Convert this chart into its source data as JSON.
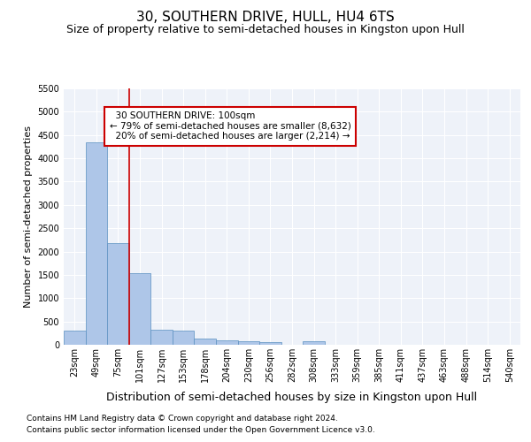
{
  "title": "30, SOUTHERN DRIVE, HULL, HU4 6TS",
  "subtitle": "Size of property relative to semi-detached houses in Kingston upon Hull",
  "xlabel": "Distribution of semi-detached houses by size in Kingston upon Hull",
  "ylabel": "Number of semi-detached properties",
  "footnote1": "Contains HM Land Registry data © Crown copyright and database right 2024.",
  "footnote2": "Contains public sector information licensed under the Open Government Licence v3.0.",
  "bar_labels": [
    "23sqm",
    "49sqm",
    "75sqm",
    "101sqm",
    "127sqm",
    "153sqm",
    "178sqm",
    "204sqm",
    "230sqm",
    "256sqm",
    "282sqm",
    "308sqm",
    "333sqm",
    "359sqm",
    "385sqm",
    "411sqm",
    "437sqm",
    "463sqm",
    "488sqm",
    "514sqm",
    "540sqm"
  ],
  "bar_values": [
    295,
    4340,
    2190,
    1540,
    320,
    310,
    125,
    95,
    68,
    58,
    0,
    68,
    0,
    0,
    0,
    0,
    0,
    0,
    0,
    0,
    0
  ],
  "bar_color": "#aec6e8",
  "bar_edge_color": "#5a8fc0",
  "property_size": "100sqm",
  "pct_smaller": 79,
  "n_smaller": "8,632",
  "pct_larger": 20,
  "n_larger": "2,214",
  "vline_color": "#cc0000",
  "annotation_box_color": "#cc0000",
  "ylim": [
    0,
    5500
  ],
  "yticks": [
    0,
    500,
    1000,
    1500,
    2000,
    2500,
    3000,
    3500,
    4000,
    4500,
    5000,
    5500
  ],
  "title_fontsize": 11,
  "subtitle_fontsize": 9,
  "xlabel_fontsize": 9,
  "ylabel_fontsize": 8,
  "tick_fontsize": 7,
  "annot_fontsize": 7.5,
  "footnote_fontsize": 6.5,
  "background_color": "#eef2f9"
}
